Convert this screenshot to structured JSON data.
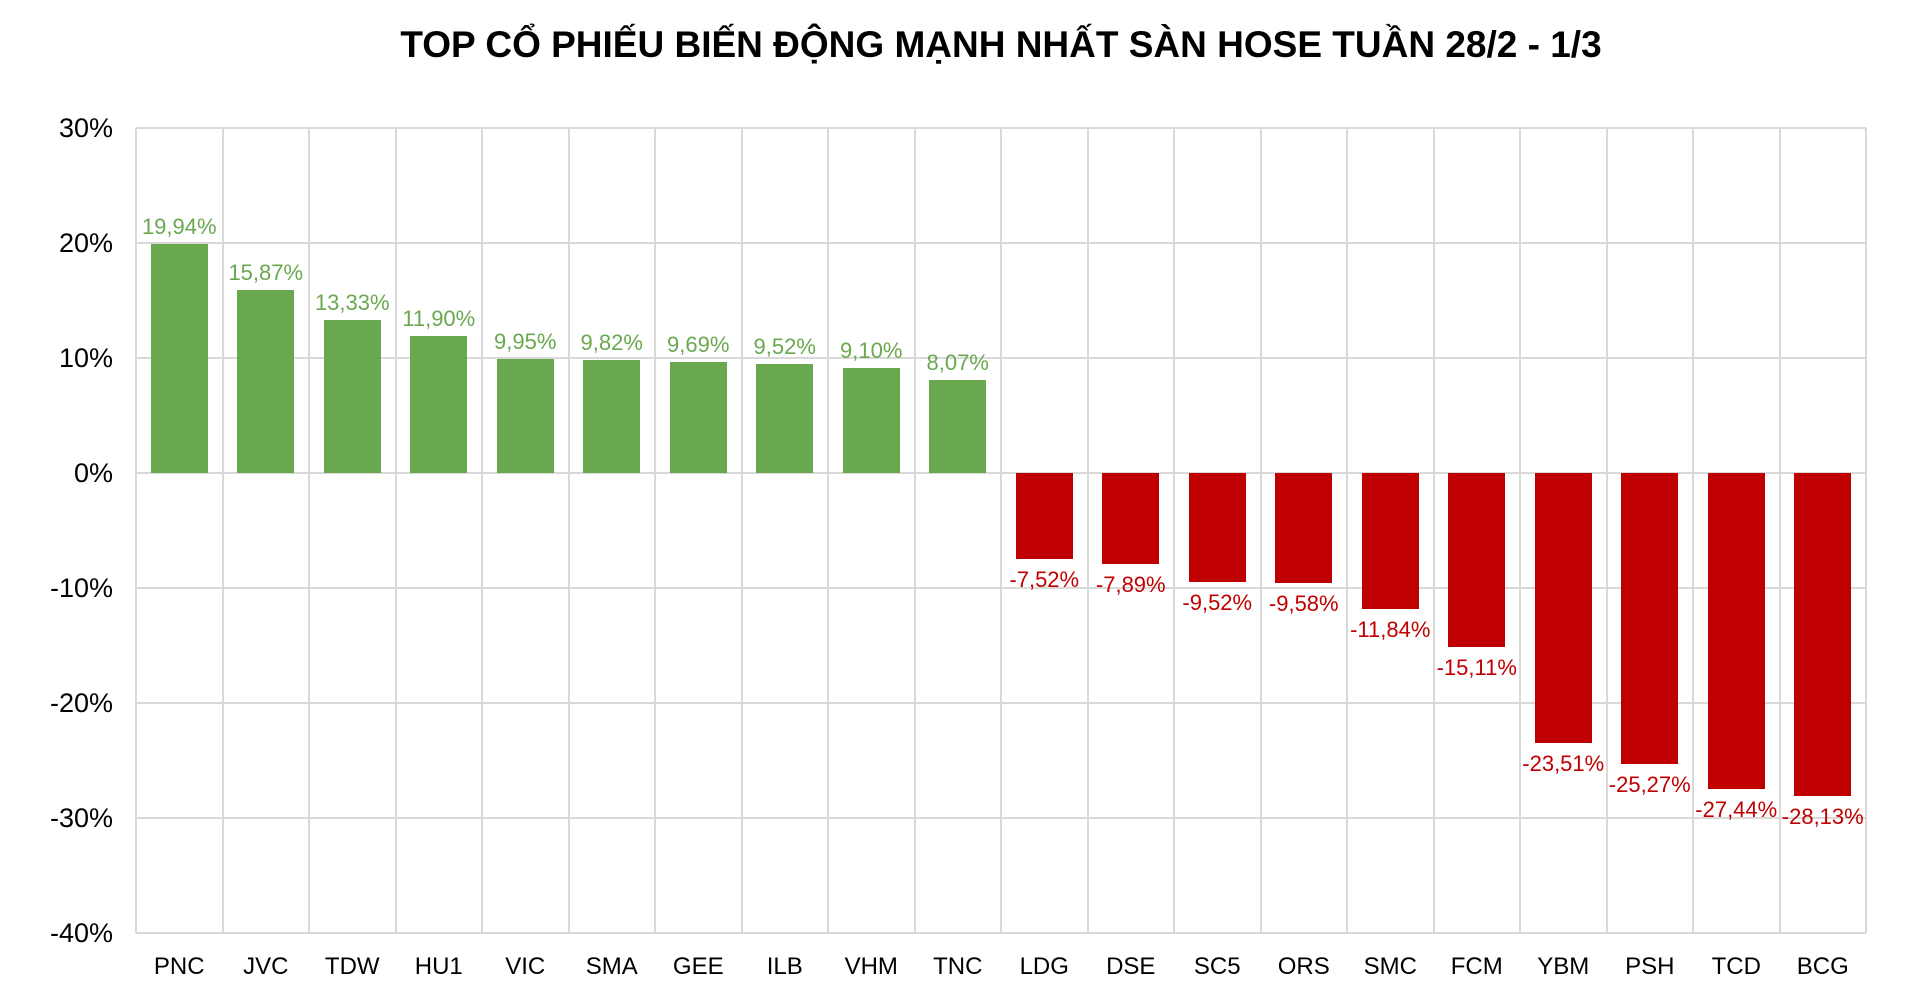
{
  "chart_data": {
    "type": "bar",
    "title": "TOP CỔ PHIẾU BIẾN ĐỘNG MẠNH NHẤT SÀN HOSE TUẦN 28/2 - 1/3",
    "categories": [
      "PNC",
      "JVC",
      "TDW",
      "HU1",
      "VIC",
      "SMA",
      "GEE",
      "ILB",
      "VHM",
      "TNC",
      "LDG",
      "DSE",
      "SC5",
      "ORS",
      "SMC",
      "FCM",
      "YBM",
      "PSH",
      "TCD",
      "BCG"
    ],
    "values": [
      19.94,
      15.87,
      13.33,
      11.9,
      9.95,
      9.82,
      9.69,
      9.52,
      9.1,
      8.07,
      -7.52,
      -7.89,
      -9.52,
      -9.58,
      -11.84,
      -15.11,
      -23.51,
      -25.27,
      -27.44,
      -28.13
    ],
    "value_labels": [
      "19,94%",
      "15,87%",
      "13,33%",
      "11,90%",
      "9,95%",
      "9,82%",
      "9,69%",
      "9,52%",
      "9,10%",
      "8,07%",
      "-7,52%",
      "-7,89%",
      "-9,52%",
      "-9,58%",
      "-11,84%",
      "-15,11%",
      "-23,51%",
      "-25,27%",
      "-27,44%",
      "-28,13%"
    ],
    "xlabel": "",
    "ylabel": "",
    "y_ticks": [
      {
        "value": 30,
        "label": "30%"
      },
      {
        "value": 20,
        "label": "20%"
      },
      {
        "value": 10,
        "label": "10%"
      },
      {
        "value": 0,
        "label": "0%"
      },
      {
        "value": -10,
        "label": "-10%"
      },
      {
        "value": -20,
        "label": "-20%"
      },
      {
        "value": -30,
        "label": "-30%"
      },
      {
        "value": -40,
        "label": "-40%"
      }
    ],
    "ylim": [
      -40,
      30
    ],
    "grid": true,
    "legend_position": "none",
    "colors": {
      "positive_bar": "#6aa84f",
      "negative_bar": "#c00000",
      "positive_label": "#6aa84f",
      "negative_label": "#c00000",
      "gridline": "#d9d9d9",
      "axis_text": "#000000",
      "title_text": "#000000",
      "background": "#ffffff"
    }
  }
}
